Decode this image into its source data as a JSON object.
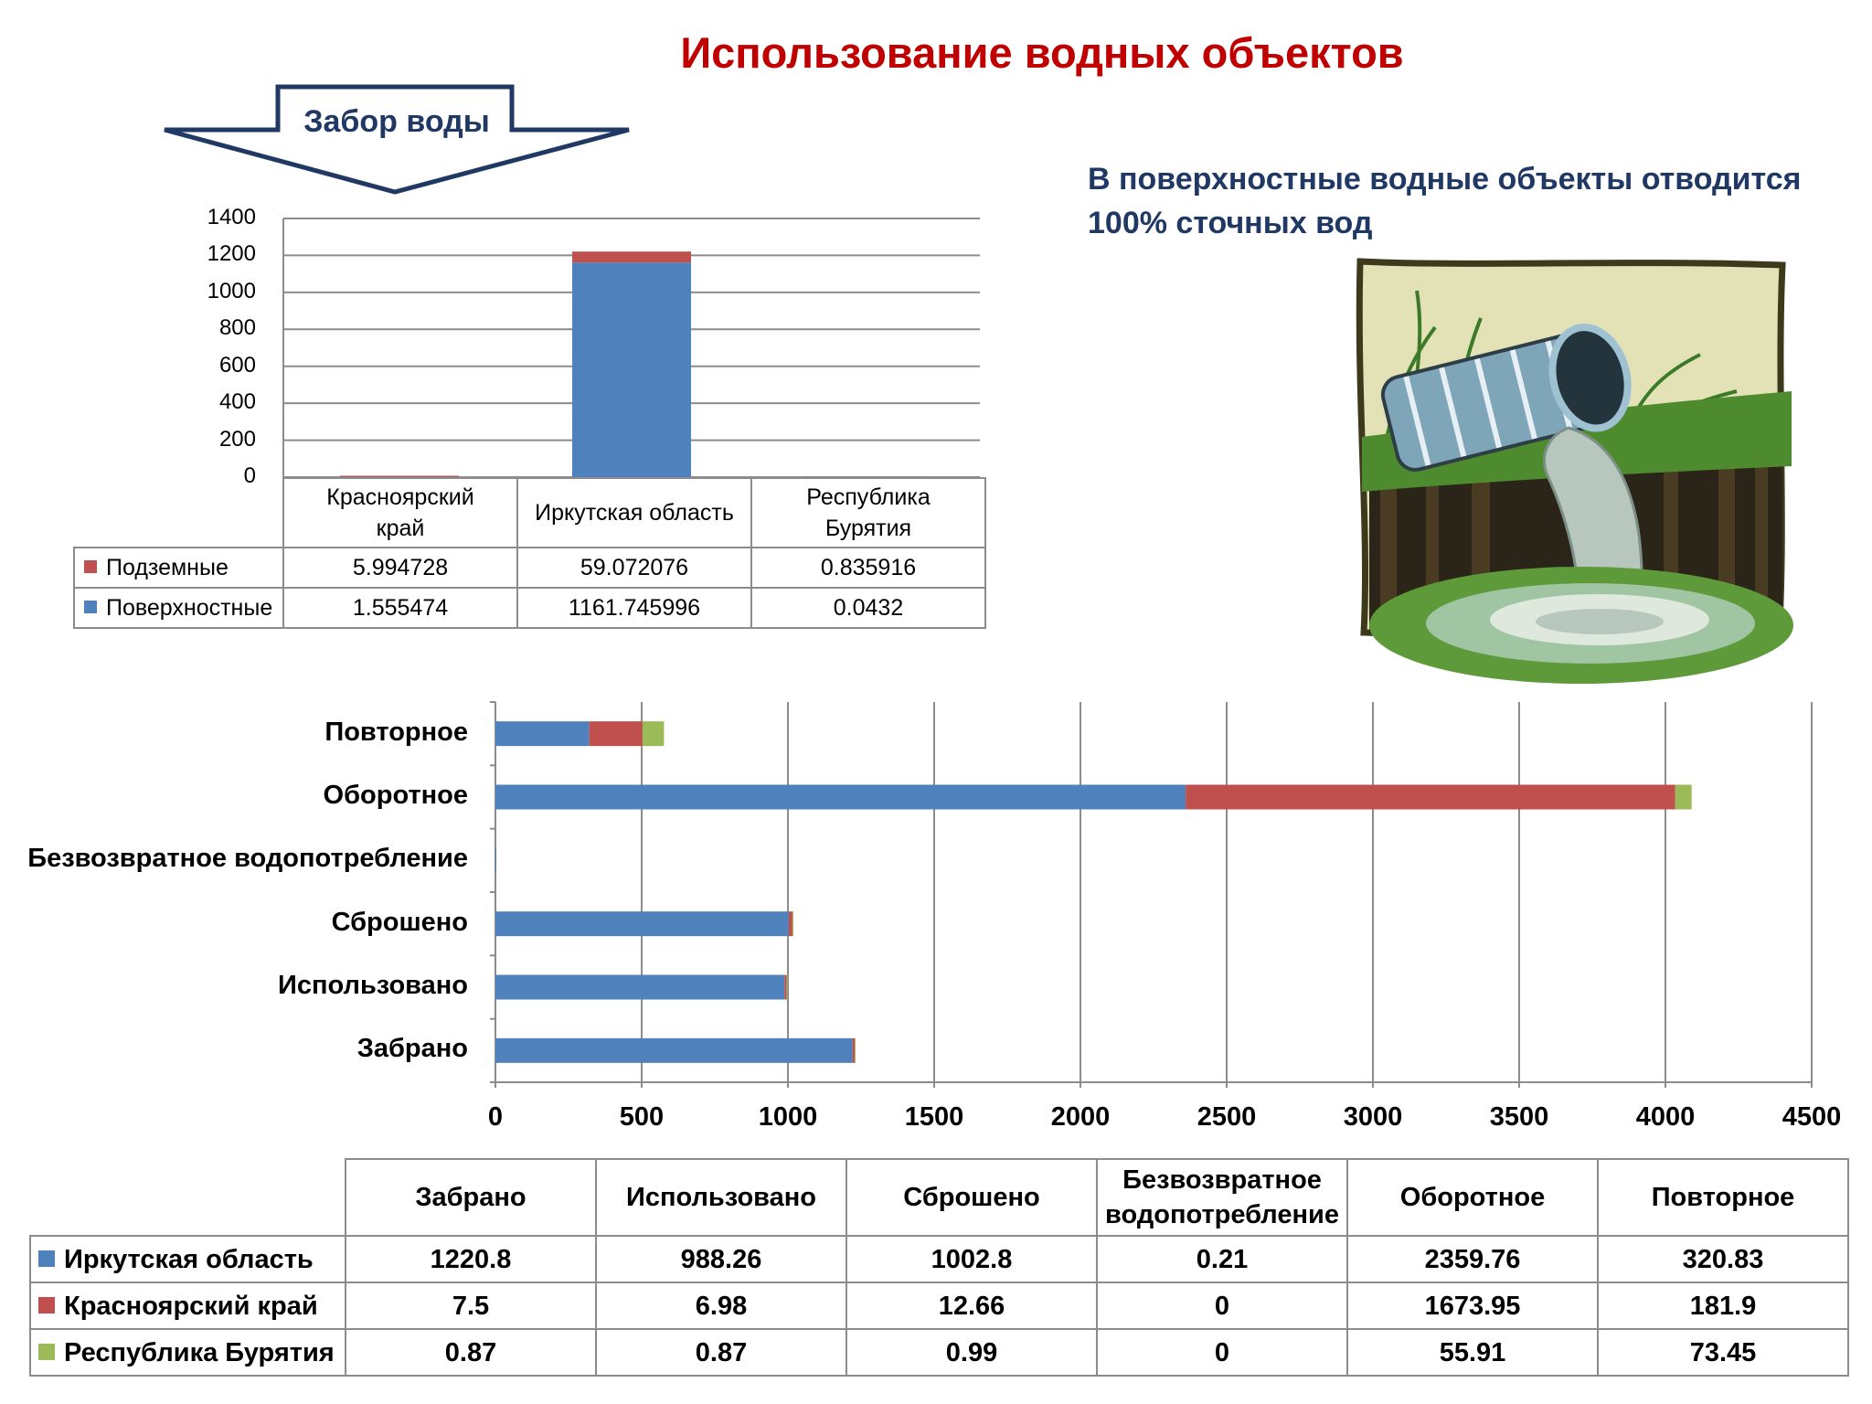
{
  "title": "Использование водных объектов",
  "arrow_label": "Забор воды",
  "note_line1": "В поверхностные водные объекты отводится",
  "note_line2": "100% сточных вод",
  "colors": {
    "title": "#c00000",
    "navy": "#1f3864",
    "blue": "#4f81bd",
    "red": "#c0504d",
    "green": "#9bbb59"
  },
  "picture": "wastewater-pipe-illustration",
  "chart_data": [
    {
      "type": "bar",
      "stacked": true,
      "categories": [
        "Красноярский край",
        "Иркутская область",
        "Республика Бурятия"
      ],
      "category_lines": [
        [
          "Красноярский",
          "край"
        ],
        [
          "Иркутская область"
        ],
        [
          "Республика",
          "Бурятия"
        ]
      ],
      "series": [
        {
          "name": "Подземные",
          "values": [
            5.994728,
            59.072076,
            0.835916
          ],
          "display": [
            "5.994728",
            "59.072076",
            "0.835916"
          ],
          "color": "#c0504d"
        },
        {
          "name": "Поверхностные",
          "values": [
            1.555474,
            1161.745996,
            0.0432
          ],
          "display": [
            "1.555474",
            "1161.745996",
            "0.0432"
          ],
          "color": "#4f81bd"
        }
      ],
      "stack_order": [
        "Поверхностные",
        "Подземные"
      ],
      "ylim": [
        0,
        1400
      ],
      "yticks": [
        "0",
        "200",
        "400",
        "600",
        "800",
        "1000",
        "1200",
        "1400"
      ],
      "grid": true,
      "data_table": true
    },
    {
      "type": "bar",
      "orientation": "horizontal",
      "stacked": true,
      "categories": [
        "Забрано",
        "Использовано",
        "Сброшено",
        "Безвозвратное водопотребление",
        "Оборотное",
        "Повторное"
      ],
      "header_lines": [
        [
          "Забрано"
        ],
        [
          "Использовано"
        ],
        [
          "Сброшено"
        ],
        [
          "Безвозвратное",
          "водопотребление"
        ],
        [
          "Оборотное"
        ],
        [
          "Повторное"
        ]
      ],
      "series": [
        {
          "name": "Иркутская область",
          "values": [
            1220.8,
            988.26,
            1002.8,
            0.21,
            2359.76,
            320.83
          ],
          "display": [
            "1220.8",
            "988.26",
            "1002.8",
            "0.21",
            "2359.76",
            "320.83"
          ],
          "color": "#4f81bd"
        },
        {
          "name": "Красноярский край",
          "values": [
            7.5,
            6.98,
            12.66,
            0,
            1673.95,
            181.9
          ],
          "display": [
            "7.5",
            "6.98",
            "12.66",
            "0",
            "1673.95",
            "181.9"
          ],
          "color": "#c0504d"
        },
        {
          "name": "Республика Бурятия",
          "values": [
            0.87,
            0.87,
            0.99,
            0,
            55.91,
            73.45
          ],
          "display": [
            "0.87",
            "0.87",
            "0.99",
            "0",
            "55.91",
            "73.45"
          ],
          "color": "#9bbb59"
        }
      ],
      "xlim": [
        0,
        4500
      ],
      "xticks": [
        "0",
        "500",
        "1000",
        "1500",
        "2000",
        "2500",
        "3000",
        "3500",
        "4000",
        "4500"
      ],
      "grid": true,
      "data_table": true
    }
  ]
}
